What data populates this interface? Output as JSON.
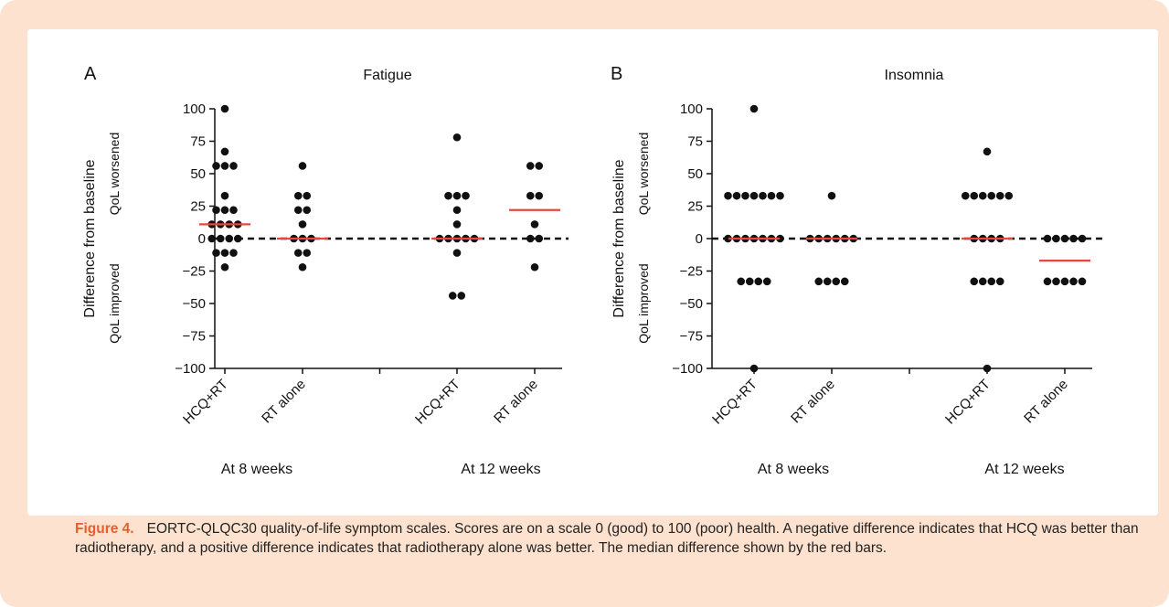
{
  "caption": {
    "label": "Figure 4.",
    "text": "EORTC-QLQC30 quality-of-life symptom scales. Scores are on a scale 0 (good) to 100 (poor) health. A negative difference indicates that HCQ was better than radiotherapy, and a positive difference indicates that radiotherapy alone was better. The median difference shown by the red bars."
  },
  "colors": {
    "frame": "#fde3cf",
    "caption_label": "#e45f2b",
    "median": "#e8473c",
    "points": "#111111"
  },
  "chart_data": [
    {
      "type": "scatter",
      "panel_label": "A",
      "title": "Fatigue",
      "ylabel": "Difference from baseline",
      "ylabel_upper": "QoL worsened",
      "ylabel_lower": "QoL improved",
      "ylim": [
        -100,
        100
      ],
      "yticks": [
        100,
        75,
        50,
        25,
        0,
        -25,
        -50,
        -75,
        -100
      ],
      "reference_line": 0,
      "categories": [
        "HCQ+RT",
        "RT alone",
        "HCQ+RT",
        "RT alone"
      ],
      "groups": [
        {
          "label": "At 8 weeks",
          "categories": [
            "HCQ+RT",
            "RT alone"
          ]
        },
        {
          "label": "At 12 weeks",
          "categories": [
            "HCQ+RT",
            "RT alone"
          ]
        }
      ],
      "series": [
        {
          "values": [
            100,
            67,
            56,
            56,
            56,
            33,
            22,
            22,
            22,
            11,
            11,
            11,
            11,
            0,
            0,
            0,
            0,
            -11,
            -11,
            -11,
            -22
          ],
          "median": 11
        },
        {
          "values": [
            56,
            33,
            33,
            22,
            22,
            11,
            0,
            0,
            0,
            -11,
            -11,
            -22
          ],
          "median": 0
        },
        {
          "values": [
            78,
            33,
            33,
            33,
            22,
            11,
            0,
            0,
            0,
            0,
            0,
            -11,
            -44,
            -44
          ],
          "median": 0
        },
        {
          "values": [
            56,
            56,
            33,
            33,
            11,
            0,
            0,
            -22
          ],
          "median": 22
        }
      ]
    },
    {
      "type": "scatter",
      "panel_label": "B",
      "title": "Insomnia",
      "ylabel": "Difference from baseline",
      "ylabel_upper": "QoL worsened",
      "ylabel_lower": "QoL improved",
      "ylim": [
        -100,
        100
      ],
      "yticks": [
        100,
        75,
        50,
        25,
        0,
        -25,
        -50,
        -75,
        -100
      ],
      "reference_line": 0,
      "categories": [
        "HCQ+RT",
        "RT alone",
        "HCQ+RT",
        "RT alone"
      ],
      "groups": [
        {
          "label": "At 8 weeks",
          "categories": [
            "HCQ+RT",
            "RT alone"
          ]
        },
        {
          "label": "At 12 weeks",
          "categories": [
            "HCQ+RT",
            "RT alone"
          ]
        }
      ],
      "series": [
        {
          "values": [
            100,
            33,
            33,
            33,
            33,
            33,
            33,
            33,
            0,
            0,
            0,
            0,
            0,
            0,
            0,
            -33,
            -33,
            -33,
            -33,
            -100
          ],
          "median": 0
        },
        {
          "values": [
            33,
            0,
            0,
            0,
            0,
            0,
            0,
            -33,
            -33,
            -33,
            -33
          ],
          "median": 0
        },
        {
          "values": [
            67,
            33,
            33,
            33,
            33,
            33,
            33,
            0,
            0,
            0,
            0,
            -33,
            -33,
            -33,
            -33,
            -100
          ],
          "median": 0
        },
        {
          "values": [
            0,
            0,
            0,
            0,
            0,
            -33,
            -33,
            -33,
            -33,
            -33
          ],
          "median": -17
        }
      ]
    }
  ]
}
